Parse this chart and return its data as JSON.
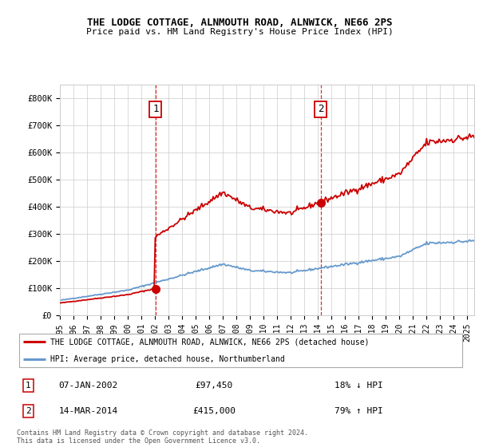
{
  "title1": "THE LODGE COTTAGE, ALNMOUTH ROAD, ALNWICK, NE66 2PS",
  "title2": "Price paid vs. HM Land Registry's House Price Index (HPI)",
  "xlim_start": 1995.0,
  "xlim_end": 2025.5,
  "ylim": [
    0,
    850000
  ],
  "yticks": [
    0,
    100000,
    200000,
    300000,
    400000,
    500000,
    600000,
    700000,
    800000
  ],
  "ytick_labels": [
    "£0",
    "£100K",
    "£200K",
    "£300K",
    "£400K",
    "£500K",
    "£600K",
    "£700K",
    "£800K"
  ],
  "sale1_x": 2002.04,
  "sale1_y": 97450,
  "sale2_x": 2014.21,
  "sale2_y": 415000,
  "vline_color": "#cc0000",
  "hpi_line_color": "#6699cc",
  "price_line_color": "#cc0000",
  "legend_label1": "THE LODGE COTTAGE, ALNMOUTH ROAD, ALNWICK, NE66 2PS (detached house)",
  "legend_label2": "HPI: Average price, detached house, Northumberland",
  "table_row1_num": "1",
  "table_row1_date": "07-JAN-2002",
  "table_row1_price": "£97,450",
  "table_row1_hpi": "18% ↓ HPI",
  "table_row2_num": "2",
  "table_row2_date": "14-MAR-2014",
  "table_row2_price": "£415,000",
  "table_row2_hpi": "79% ↑ HPI",
  "footer": "Contains HM Land Registry data © Crown copyright and database right 2024.\nThis data is licensed under the Open Government Licence v3.0.",
  "xticks": [
    1995,
    1996,
    1997,
    1998,
    1999,
    2000,
    2001,
    2002,
    2003,
    2004,
    2005,
    2006,
    2007,
    2008,
    2009,
    2010,
    2011,
    2012,
    2013,
    2014,
    2015,
    2016,
    2017,
    2018,
    2019,
    2020,
    2021,
    2022,
    2023,
    2024,
    2025
  ]
}
